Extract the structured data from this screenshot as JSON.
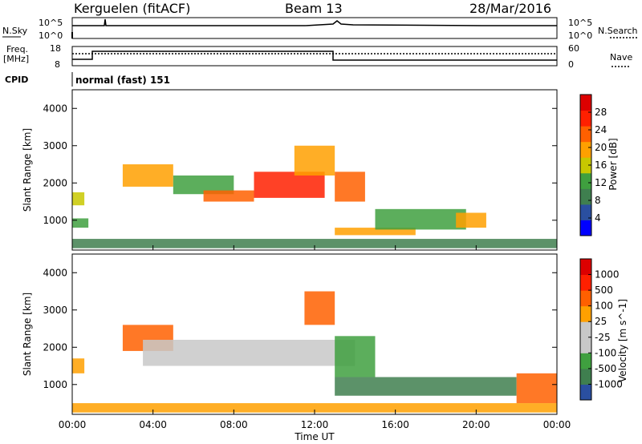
{
  "header": {
    "station": "Kerguelen (fitACF)",
    "beam": "Beam 13",
    "date": "28/Mar/2016"
  },
  "noise_panel": {
    "left_label": "N.Sky",
    "right_label": "N.Search",
    "left_ticks": [
      "10^5",
      "10^0"
    ],
    "right_ticks": [
      "10^5",
      "10^0"
    ]
  },
  "freq_panel": {
    "left_label_line1": "Freq.",
    "left_label_line2": "[MHz]",
    "right_label": "Nave",
    "left_ticks": [
      "18",
      "8"
    ],
    "right_ticks": [
      "60",
      "0"
    ]
  },
  "cpid": {
    "label": "CPID",
    "value": "normal (fast) 151"
  },
  "colors": {
    "power_scale": [
      "#0000ff",
      "#2a4fa0",
      "#3f7f4f",
      "#3fa03f",
      "#c8c800",
      "#ffa000",
      "#ff6000",
      "#ff2000",
      "#dd0000"
    ],
    "velocity_scale": [
      "#2a4fa0",
      "#3f7f4f",
      "#3fa03f",
      "#c8c8c8",
      "#c8c8c8",
      "#ffa000",
      "#ff6000",
      "#ff2000",
      "#dd0000"
    ]
  },
  "chart_data": [
    {
      "type": "heatmap",
      "name": "power",
      "ylabel": "Slant Range [km]",
      "y_ticks": [
        "1000",
        "2000",
        "3000",
        "4000"
      ],
      "ylim": [
        200,
        4500
      ],
      "colorbar_label": "Power [dB]",
      "colorbar_ticks": [
        "4",
        "8",
        "12",
        "16",
        "20",
        "24",
        "28"
      ],
      "echo_regions": [
        {
          "t_start": 0.0,
          "t_end": 0.8,
          "r_start": 800,
          "r_end": 1050,
          "level": 3
        },
        {
          "t_start": 0.0,
          "t_end": 0.6,
          "r_start": 1400,
          "r_end": 1750,
          "level": 4
        },
        {
          "t_start": 2.5,
          "t_end": 5.0,
          "r_start": 1900,
          "r_end": 2500,
          "level": 5
        },
        {
          "t_start": 5.0,
          "t_end": 8.0,
          "r_start": 1700,
          "r_end": 2200,
          "level": 3
        },
        {
          "t_start": 6.5,
          "t_end": 9.0,
          "r_start": 1500,
          "r_end": 1800,
          "level": 6
        },
        {
          "t_start": 9.0,
          "t_end": 12.5,
          "r_start": 1600,
          "r_end": 2300,
          "level": 7
        },
        {
          "t_start": 11.0,
          "t_end": 13.0,
          "r_start": 2200,
          "r_end": 3000,
          "level": 5
        },
        {
          "t_start": 13.0,
          "t_end": 14.5,
          "r_start": 1500,
          "r_end": 2300,
          "level": 6
        },
        {
          "t_start": 13.0,
          "t_end": 17.0,
          "r_start": 600,
          "r_end": 800,
          "level": 5
        },
        {
          "t_start": 15.0,
          "t_end": 19.5,
          "r_start": 750,
          "r_end": 1300,
          "level": 3
        },
        {
          "t_start": 19.0,
          "t_end": 20.5,
          "r_start": 800,
          "r_end": 1200,
          "level": 5
        },
        {
          "t_start": 0.0,
          "t_end": 24.0,
          "r_start": 250,
          "r_end": 500,
          "level": 2
        }
      ]
    },
    {
      "type": "heatmap",
      "name": "velocity",
      "ylabel": "Slant Range [km]",
      "y_ticks": [
        "1000",
        "2000",
        "3000",
        "4000"
      ],
      "ylim": [
        200,
        4500
      ],
      "colorbar_label": "Velocity [m s^-1]",
      "colorbar_ticks": [
        "1000",
        "500",
        "100",
        "25",
        "-25",
        "-100",
        "-500",
        "-1000"
      ],
      "x_ticks": [
        "00:00",
        "04:00",
        "08:00",
        "12:00",
        "16:00",
        "20:00",
        "00:00"
      ],
      "xlim": [
        0,
        24
      ],
      "xlabel": "Time UT",
      "echo_regions": [
        {
          "t_start": 0.0,
          "t_end": 0.6,
          "r_start": 1300,
          "r_end": 1700,
          "level": 5
        },
        {
          "t_start": 2.5,
          "t_end": 5.0,
          "r_start": 1900,
          "r_end": 2600,
          "level": 6
        },
        {
          "t_start": 3.5,
          "t_end": 14.0,
          "r_start": 1500,
          "r_end": 2200,
          "level": 3
        },
        {
          "t_start": 11.5,
          "t_end": 13.0,
          "r_start": 2600,
          "r_end": 3500,
          "level": 6
        },
        {
          "t_start": 13.0,
          "t_end": 15.0,
          "r_start": 1200,
          "r_end": 2300,
          "level": 2
        },
        {
          "t_start": 13.0,
          "t_end": 22.0,
          "r_start": 700,
          "r_end": 1200,
          "level": 1
        },
        {
          "t_start": 22.0,
          "t_end": 24.0,
          "r_start": 500,
          "r_end": 1300,
          "level": 6
        },
        {
          "t_start": 0.0,
          "t_end": 24.0,
          "r_start": 250,
          "r_end": 500,
          "level": 5
        }
      ]
    }
  ]
}
